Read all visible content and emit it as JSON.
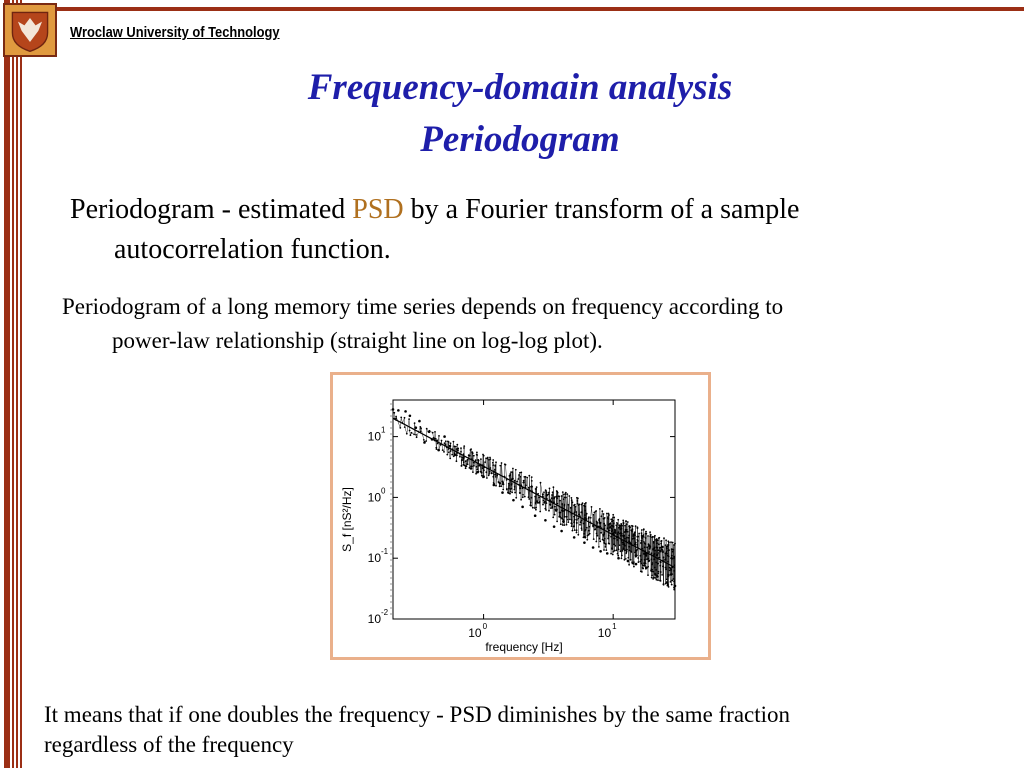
{
  "header": {
    "university": "Wroclaw University of Technology"
  },
  "title": {
    "line1": "Frequency-domain analysis",
    "line2": "Periodogram"
  },
  "body": {
    "p1_before": "Periodogram - estimated ",
    "p1_highlight": "PSD",
    "p1_after": " by a Fourier transform of a sample",
    "p1_line2": "autocorrelation function.",
    "p2_line1": "Periodogram of a long memory time series depends on frequency according to",
    "p2_line2": "power-law relationship (straight line on log-log plot).",
    "footer_line1": "It means that if one doubles the frequency - PSD diminishes by the same fraction",
    "footer_line2": "regardless of the frequency"
  },
  "colors": {
    "brand": "#9b2f15",
    "title": "#1e1eaa",
    "highlight": "#b0701f",
    "figure_border": "#eab08b"
  },
  "chart_data": {
    "type": "scatter",
    "x_scale": "log",
    "y_scale": "log",
    "xlim": [
      0.2,
      30
    ],
    "ylim": [
      0.01,
      40
    ],
    "xlabel": "frequency [Hz]",
    "ylabel": "S_f [nS²/Hz]",
    "x_ticks": [
      {
        "base": "10",
        "exp": "0",
        "value": 1
      },
      {
        "base": "10",
        "exp": "1",
        "value": 10
      }
    ],
    "y_ticks": [
      {
        "base": "10",
        "exp": "1",
        "value": 10
      },
      {
        "base": "10",
        "exp": "0",
        "value": 1
      },
      {
        "base": "10",
        "exp": "-1",
        "value": 0.1
      },
      {
        "base": "10",
        "exp": "-2",
        "value": 0.01
      }
    ],
    "fit_line": {
      "x": [
        0.2,
        30
      ],
      "y": [
        20,
        0.07
      ]
    },
    "series_note": "dense periodogram points scattered around fitted power-law line",
    "sample_points": [
      [
        0.2,
        28
      ],
      [
        0.22,
        27
      ],
      [
        0.25,
        26
      ],
      [
        0.27,
        22
      ],
      [
        0.3,
        14
      ],
      [
        0.32,
        18
      ],
      [
        0.35,
        8
      ],
      [
        0.38,
        12
      ],
      [
        0.4,
        9
      ],
      [
        0.45,
        6
      ],
      [
        0.5,
        10
      ],
      [
        0.55,
        7
      ],
      [
        0.6,
        5
      ],
      [
        0.7,
        4.5
      ],
      [
        0.8,
        3
      ],
      [
        0.9,
        2.6
      ],
      [
        1.0,
        2.2
      ],
      [
        1.2,
        1.6
      ],
      [
        1.4,
        1.2
      ],
      [
        1.7,
        0.9
      ],
      [
        2.0,
        0.7
      ],
      [
        2.5,
        0.5
      ],
      [
        3.0,
        0.42
      ],
      [
        3.5,
        0.33
      ],
      [
        4.0,
        0.28
      ],
      [
        5.0,
        0.22
      ],
      [
        6.0,
        0.18
      ],
      [
        7.0,
        0.15
      ],
      [
        8.0,
        0.13
      ],
      [
        9.0,
        0.12
      ],
      [
        10.0,
        0.25
      ],
      [
        11,
        0.1
      ],
      [
        13,
        0.09
      ],
      [
        15,
        0.08
      ],
      [
        18,
        0.07
      ],
      [
        22,
        0.05
      ],
      [
        26,
        0.04
      ],
      [
        30,
        0.035
      ]
    ]
  }
}
